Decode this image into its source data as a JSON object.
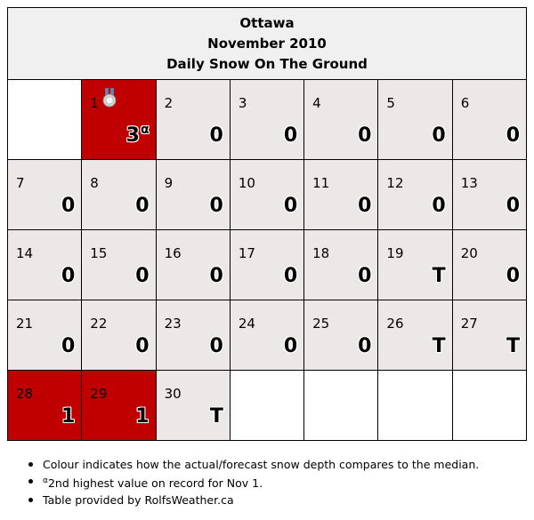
{
  "header": {
    "city": "Ottawa",
    "period": "November 2010",
    "metric": "Daily Snow On The Ground"
  },
  "colors": {
    "cell_default": "#ede8e8",
    "cell_high": "#c00000",
    "header_bg": "#f0f0f0"
  },
  "weeks": [
    [
      null,
      {
        "day": "1",
        "value": "3",
        "sup": "α",
        "medal": "silver-medal-icon",
        "high": true
      },
      {
        "day": "2",
        "value": "0"
      },
      {
        "day": "3",
        "value": "0"
      },
      {
        "day": "4",
        "value": "0"
      },
      {
        "day": "5",
        "value": "0"
      },
      {
        "day": "6",
        "value": "0"
      }
    ],
    [
      {
        "day": "7",
        "value": "0"
      },
      {
        "day": "8",
        "value": "0"
      },
      {
        "day": "9",
        "value": "0"
      },
      {
        "day": "10",
        "value": "0"
      },
      {
        "day": "11",
        "value": "0"
      },
      {
        "day": "12",
        "value": "0"
      },
      {
        "day": "13",
        "value": "0"
      }
    ],
    [
      {
        "day": "14",
        "value": "0"
      },
      {
        "day": "15",
        "value": "0"
      },
      {
        "day": "16",
        "value": "0"
      },
      {
        "day": "17",
        "value": "0"
      },
      {
        "day": "18",
        "value": "0"
      },
      {
        "day": "19",
        "value": "T"
      },
      {
        "day": "20",
        "value": "0"
      }
    ],
    [
      {
        "day": "21",
        "value": "0"
      },
      {
        "day": "22",
        "value": "0"
      },
      {
        "day": "23",
        "value": "0"
      },
      {
        "day": "24",
        "value": "0"
      },
      {
        "day": "25",
        "value": "0"
      },
      {
        "day": "26",
        "value": "T"
      },
      {
        "day": "27",
        "value": "T"
      }
    ],
    [
      {
        "day": "28",
        "value": "1",
        "high": true
      },
      {
        "day": "29",
        "value": "1",
        "high": true
      },
      {
        "day": "30",
        "value": "T"
      },
      null,
      null,
      null,
      null
    ]
  ],
  "notes": [
    {
      "text": "Colour indicates how the actual/forecast snow depth compares to the median."
    },
    {
      "sup": "α",
      "text": "2nd highest value on record for Nov 1."
    },
    {
      "text": "Table provided by RolfsWeather.ca"
    }
  ]
}
